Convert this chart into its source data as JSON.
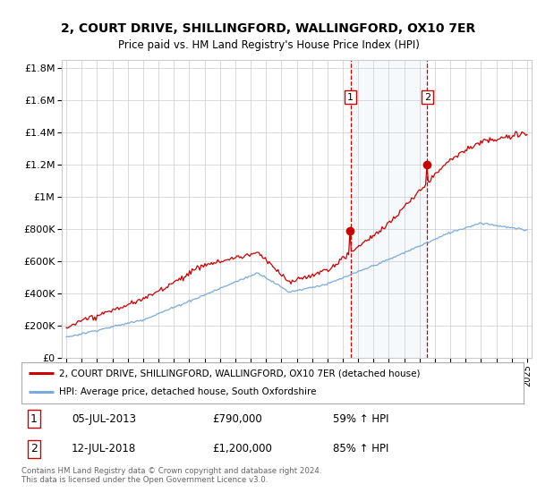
{
  "title1": "2, COURT DRIVE, SHILLINGFORD, WALLINGFORD, OX10 7ER",
  "title2": "Price paid vs. HM Land Registry's House Price Index (HPI)",
  "legend_label1": "2, COURT DRIVE, SHILLINGFORD, WALLINGFORD, OX10 7ER (detached house)",
  "legend_label2": "HPI: Average price, detached house, South Oxfordshire",
  "footer": "Contains HM Land Registry data © Crown copyright and database right 2024.\nThis data is licensed under the Open Government Licence v3.0.",
  "sale1_date": "05-JUL-2013",
  "sale1_price": "£790,000",
  "sale1_hpi": "59% ↑ HPI",
  "sale1_year": 2013.5,
  "sale2_date": "12-JUL-2018",
  "sale2_price": "£1,200,000",
  "sale2_hpi": "85% ↑ HPI",
  "sale2_year": 2018.5,
  "hpi_color": "#7aaadd",
  "price_color": "#cc0000",
  "shade_color": "#d8e8f5",
  "dashed_color": "#cc0000",
  "background_color": "#ffffff",
  "grid_color": "#cccccc",
  "ylim_min": 0,
  "ylim_max": 1850000,
  "xlim_min": 1994.7,
  "xlim_max": 2025.3
}
